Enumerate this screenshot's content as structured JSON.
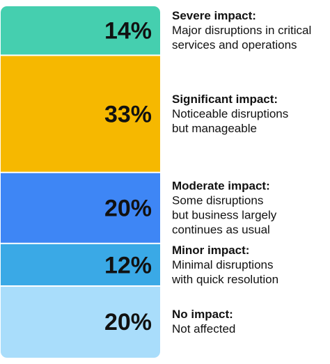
{
  "chart_data": {
    "type": "stacked-bar",
    "categories": [
      "Severe impact:",
      "Significant impact:",
      "Moderate impact:",
      "Minor impact:",
      "No impact:"
    ],
    "descriptions": [
      [
        "Major disruptions in critical",
        "services and operations"
      ],
      [
        "Noticeable disruptions",
        "but manageable"
      ],
      [
        "Some disruptions",
        "but business largely",
        "continues as usual"
      ],
      [
        "Minimal disruptions",
        "with quick resolution"
      ],
      [
        "Not affected"
      ]
    ],
    "values": [
      14,
      33,
      20,
      12,
      20
    ],
    "value_labels": [
      "14%",
      "33%",
      "20%",
      "12%",
      "20%"
    ],
    "colors": [
      "#45cfaf",
      "#f6b800",
      "#3e86f5",
      "#3aa9e6",
      "#a9ddfb"
    ]
  }
}
